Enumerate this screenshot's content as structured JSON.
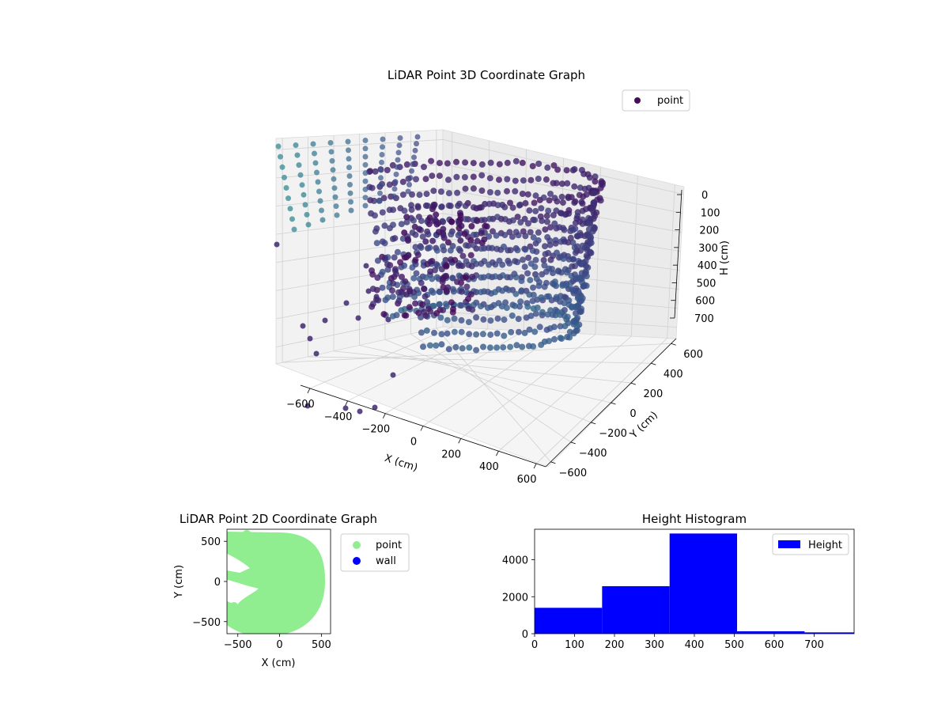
{
  "chart_data": [
    {
      "type": "scatter",
      "title": "LiDAR Point 3D Coordinate Graph",
      "xlabel": "X (cm)",
      "ylabel": "Y (cm)",
      "zlabel": "H (cm)",
      "xlim": [
        -650,
        650
      ],
      "ylim": [
        -650,
        650
      ],
      "zlim": [
        0,
        800
      ],
      "x_ticks": [
        "−600",
        "−400",
        "−200",
        "0",
        "200",
        "400",
        "600"
      ],
      "y_ticks": [
        "−600",
        "−400",
        "−200",
        "0",
        "200",
        "400",
        "600"
      ],
      "z_ticks": [
        "0",
        "100",
        "200",
        "300",
        "400",
        "500",
        "600",
        "700"
      ],
      "z_inverted": true,
      "colormap": "viridis",
      "legend": {
        "entries": [
          "point"
        ],
        "position": "top-right",
        "marker_color": "#440f56"
      },
      "grid": true
    },
    {
      "type": "scatter",
      "title": "LiDAR Point 2D Coordinate Graph",
      "xlabel": "X (cm)",
      "ylabel": "Y (cm)",
      "xlim": [
        -630,
        610
      ],
      "ylim": [
        -650,
        650
      ],
      "x_ticks": [
        -500,
        0,
        500
      ],
      "y_ticks": [
        -500,
        0,
        500
      ],
      "series": [
        {
          "name": "point",
          "color": "#90ee90"
        },
        {
          "name": "wall",
          "color": "#0000ff"
        }
      ],
      "legend": {
        "position": "outside-right"
      }
    },
    {
      "type": "bar",
      "title": "Height Histogram",
      "xlim": [
        0,
        800
      ],
      "ylim": [
        0,
        5650
      ],
      "x_ticks": [
        0,
        100,
        200,
        300,
        400,
        500,
        600,
        700
      ],
      "y_ticks": [
        0,
        2000,
        4000
      ],
      "bins": [
        {
          "x0": 0,
          "x1": 169,
          "value": 1400
        },
        {
          "x0": 169,
          "x1": 338,
          "value": 2570
        },
        {
          "x0": 338,
          "x1": 507,
          "value": 5420
        },
        {
          "x0": 507,
          "x1": 676,
          "value": 130
        },
        {
          "x0": 676,
          "x1": 800,
          "value": 70
        }
      ],
      "series": [
        {
          "name": "Height",
          "color": "#0000ff"
        }
      ],
      "legend": {
        "position": "top-right"
      }
    }
  ]
}
